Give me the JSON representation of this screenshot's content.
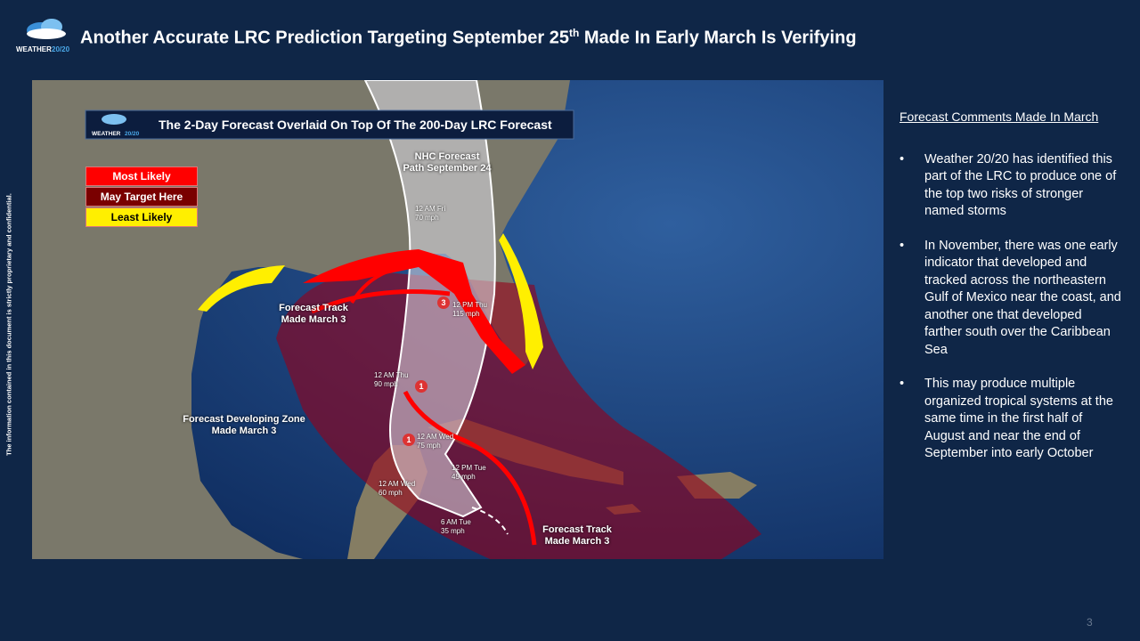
{
  "header": {
    "logo_word": "WEATHER",
    "logo_num": "20/20",
    "title_start": "Another Accurate LRC Prediction Targeting September 25",
    "title_sup": "th",
    "title_end": " Made In Early March Is Verifying"
  },
  "side_note": "The information contained in this document is strictly proprietary and confidential.",
  "map": {
    "banner_logo_word": "WEATHER",
    "banner_logo_num": "20/20",
    "banner": "The 2-Day Forecast Overlaid On Top Of The 200-Day LRC Forecast",
    "legend": [
      "Most Likely",
      "May Target Here",
      "Least Likely"
    ],
    "nhc_label": [
      "NHC Forecast",
      "Path  September 24"
    ],
    "track_label_left": [
      "Forecast Track",
      "Made March 3"
    ],
    "track_label_bottom": [
      "Forecast Track",
      "Made March 3"
    ],
    "zone_label": [
      "Forecast Developing Zone",
      "Made March 3"
    ],
    "storm_points": [
      {
        "time": "12 AM Fri",
        "speed": "70 mph"
      },
      {
        "time": "12 PM Thu",
        "speed": "115 mph"
      },
      {
        "time": "12 AM Thu",
        "speed": "90 mph"
      },
      {
        "time": "12 AM Wed",
        "speed": "75 mph"
      },
      {
        "time": "12 PM Tue",
        "speed": "45 mph"
      },
      {
        "time": "12 AM Wed",
        "speed": "60 mph"
      },
      {
        "time": "6 AM Tue",
        "speed": "35 mph"
      }
    ],
    "storm_icons": [
      "3",
      "1",
      "1"
    ]
  },
  "comments": {
    "heading": "Forecast Comments Made In March",
    "bullets": [
      "Weather 20/20 has identified this part of the LRC to produce one of the top two risks of stronger named storms",
      "In November, there was one early indicator that developed and tracked across the northeastern Gulf of Mexico near the coast, and another one that developed farther south over the Caribbean Sea",
      "This may produce multiple organized tropical systems at the same time in the first half of August and near the end of September into early October"
    ]
  },
  "page_number": "3"
}
